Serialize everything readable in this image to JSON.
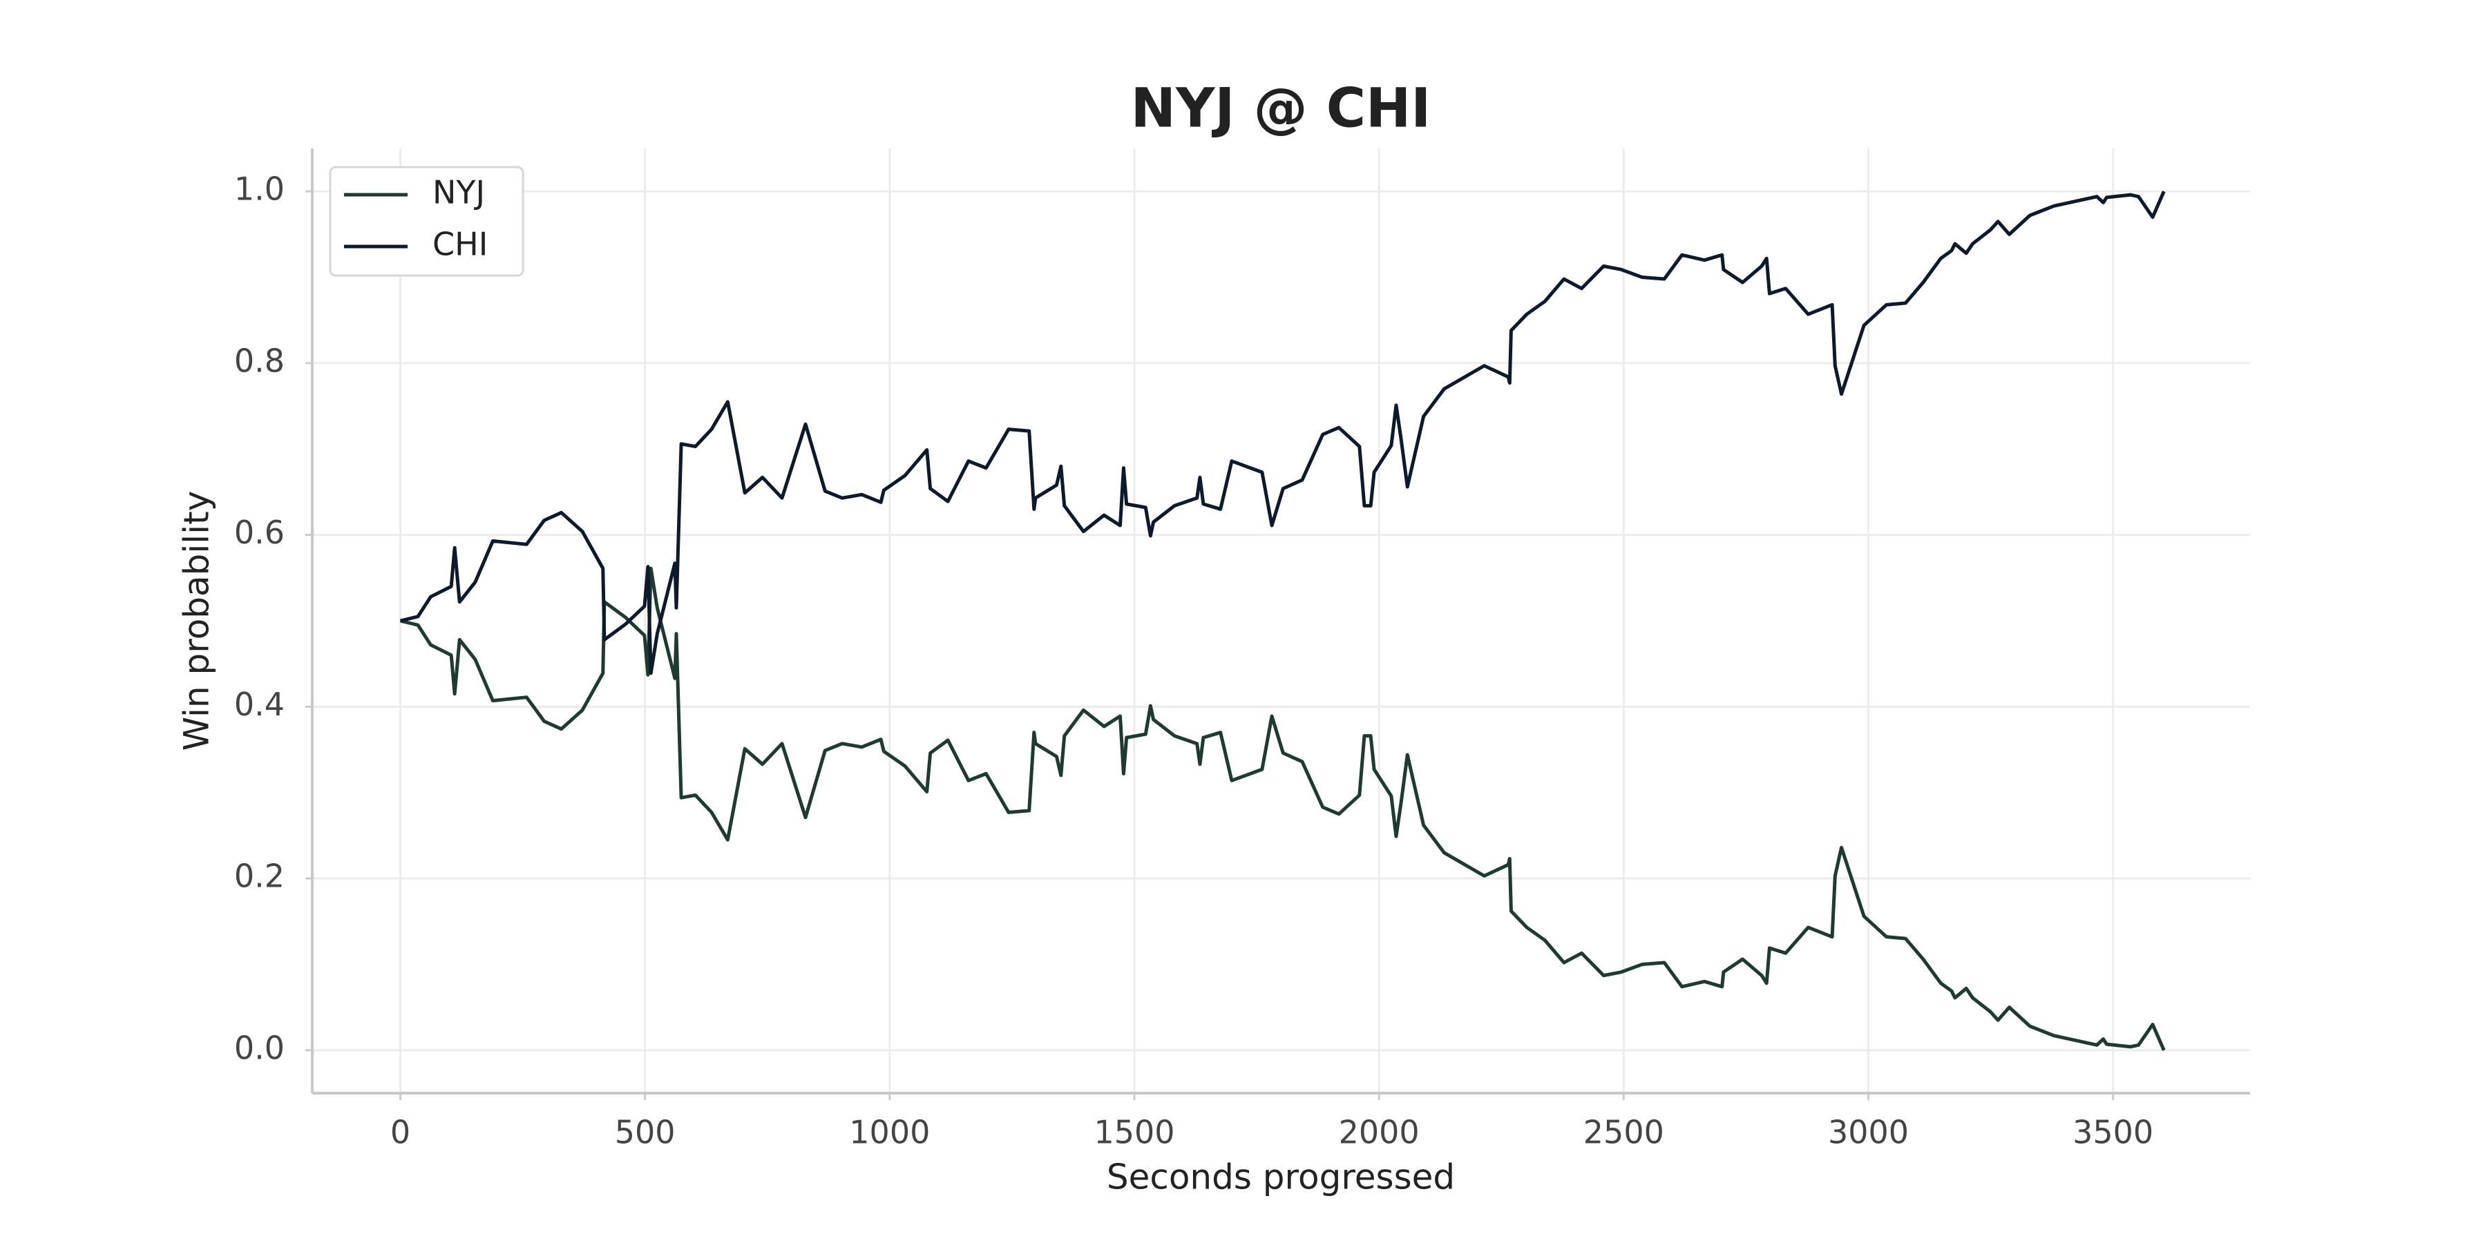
{
  "chart_data": {
    "type": "line",
    "title": "NYJ @ CHI",
    "xlabel": "Seconds progressed",
    "ylabel": "Win probability",
    "x": [
      0,
      36,
      62,
      104,
      111,
      121,
      153,
      189,
      258,
      294,
      329,
      372,
      414,
      417,
      460,
      499,
      506,
      512,
      525,
      561,
      564,
      574,
      603,
      636,
      669,
      704,
      740,
      780,
      828,
      868,
      903,
      943,
      982,
      988,
      1031,
      1076,
      1083,
      1119,
      1161,
      1197,
      1243,
      1285,
      1295,
      1298,
      1341,
      1350,
      1357,
      1396,
      1438,
      1471,
      1478,
      1484,
      1523,
      1533,
      1539,
      1582,
      1628,
      1634,
      1641,
      1676,
      1699,
      1761,
      1781,
      1804,
      1843,
      1885,
      1918,
      1960,
      1970,
      1983,
      1990,
      2025,
      2035,
      2045,
      2058,
      2091,
      2133,
      2215,
      2264,
      2267,
      2270,
      2302,
      2339,
      2378,
      2414,
      2459,
      2495,
      2538,
      2583,
      2619,
      2665,
      2701,
      2704,
      2743,
      2782,
      2792,
      2798,
      2831,
      2877,
      2926,
      2932,
      2945,
      2991,
      3037,
      3076,
      3112,
      3148,
      3170,
      3177,
      3200,
      3213,
      3249,
      3265,
      3288,
      3330,
      3379,
      3467,
      3480,
      3487,
      3536,
      3552,
      3581,
      3604
    ],
    "series": [
      {
        "name": "NYJ",
        "color": "#1f3a31",
        "values": [
          0.5,
          0.495,
          0.472,
          0.46,
          0.415,
          0.478,
          0.455,
          0.407,
          0.411,
          0.383,
          0.374,
          0.396,
          0.439,
          0.522,
          0.504,
          0.483,
          0.437,
          0.561,
          0.515,
          0.433,
          0.485,
          0.294,
          0.297,
          0.277,
          0.245,
          0.351,
          0.333,
          0.357,
          0.271,
          0.349,
          0.357,
          0.353,
          0.362,
          0.348,
          0.331,
          0.301,
          0.346,
          0.361,
          0.314,
          0.322,
          0.277,
          0.279,
          0.37,
          0.357,
          0.342,
          0.32,
          0.366,
          0.396,
          0.377,
          0.389,
          0.322,
          0.364,
          0.368,
          0.401,
          0.385,
          0.366,
          0.357,
          0.333,
          0.364,
          0.37,
          0.314,
          0.327,
          0.389,
          0.346,
          0.336,
          0.283,
          0.275,
          0.297,
          0.366,
          0.366,
          0.327,
          0.296,
          0.249,
          0.288,
          0.344,
          0.262,
          0.23,
          0.203,
          0.216,
          0.223,
          0.162,
          0.143,
          0.128,
          0.102,
          0.113,
          0.087,
          0.091,
          0.1,
          0.102,
          0.074,
          0.08,
          0.074,
          0.091,
          0.106,
          0.087,
          0.078,
          0.119,
          0.113,
          0.143,
          0.132,
          0.203,
          0.236,
          0.156,
          0.132,
          0.13,
          0.106,
          0.078,
          0.069,
          0.061,
          0.072,
          0.061,
          0.045,
          0.035,
          0.05,
          0.028,
          0.017,
          0.006,
          0.013,
          0.007,
          0.004,
          0.006,
          0.03,
          0.0
        ]
      },
      {
        "name": "CHI",
        "color": "#0c1a2c",
        "values": [
          0.5,
          0.505,
          0.528,
          0.54,
          0.585,
          0.522,
          0.545,
          0.593,
          0.589,
          0.617,
          0.626,
          0.604,
          0.561,
          0.478,
          0.496,
          0.517,
          0.563,
          0.439,
          0.485,
          0.567,
          0.515,
          0.706,
          0.703,
          0.723,
          0.755,
          0.649,
          0.667,
          0.643,
          0.729,
          0.651,
          0.643,
          0.647,
          0.638,
          0.652,
          0.669,
          0.699,
          0.654,
          0.639,
          0.686,
          0.678,
          0.723,
          0.721,
          0.63,
          0.643,
          0.658,
          0.68,
          0.634,
          0.604,
          0.623,
          0.611,
          0.678,
          0.636,
          0.632,
          0.599,
          0.615,
          0.634,
          0.643,
          0.667,
          0.636,
          0.63,
          0.686,
          0.673,
          0.611,
          0.654,
          0.664,
          0.717,
          0.725,
          0.703,
          0.634,
          0.634,
          0.673,
          0.704,
          0.751,
          0.712,
          0.656,
          0.738,
          0.77,
          0.797,
          0.784,
          0.777,
          0.838,
          0.857,
          0.872,
          0.898,
          0.887,
          0.913,
          0.909,
          0.9,
          0.898,
          0.926,
          0.92,
          0.926,
          0.909,
          0.894,
          0.913,
          0.922,
          0.881,
          0.887,
          0.857,
          0.868,
          0.797,
          0.764,
          0.844,
          0.868,
          0.87,
          0.894,
          0.922,
          0.931,
          0.939,
          0.928,
          0.939,
          0.955,
          0.965,
          0.95,
          0.972,
          0.983,
          0.994,
          0.987,
          0.993,
          0.996,
          0.994,
          0.97,
          1.0
        ]
      }
    ],
    "xlim": [
      -180,
      3780
    ],
    "ylim": [
      -0.05,
      1.05
    ],
    "xticks": [
      0,
      500,
      1000,
      1500,
      2000,
      2500,
      3000,
      3500
    ],
    "yticks": [
      {
        "value": 0,
        "label": "0.0"
      },
      0.2,
      0.4,
      0.6,
      0.8,
      {
        "value": 1,
        "label": "1.0"
      }
    ],
    "grid": true,
    "legend": "upper left"
  }
}
